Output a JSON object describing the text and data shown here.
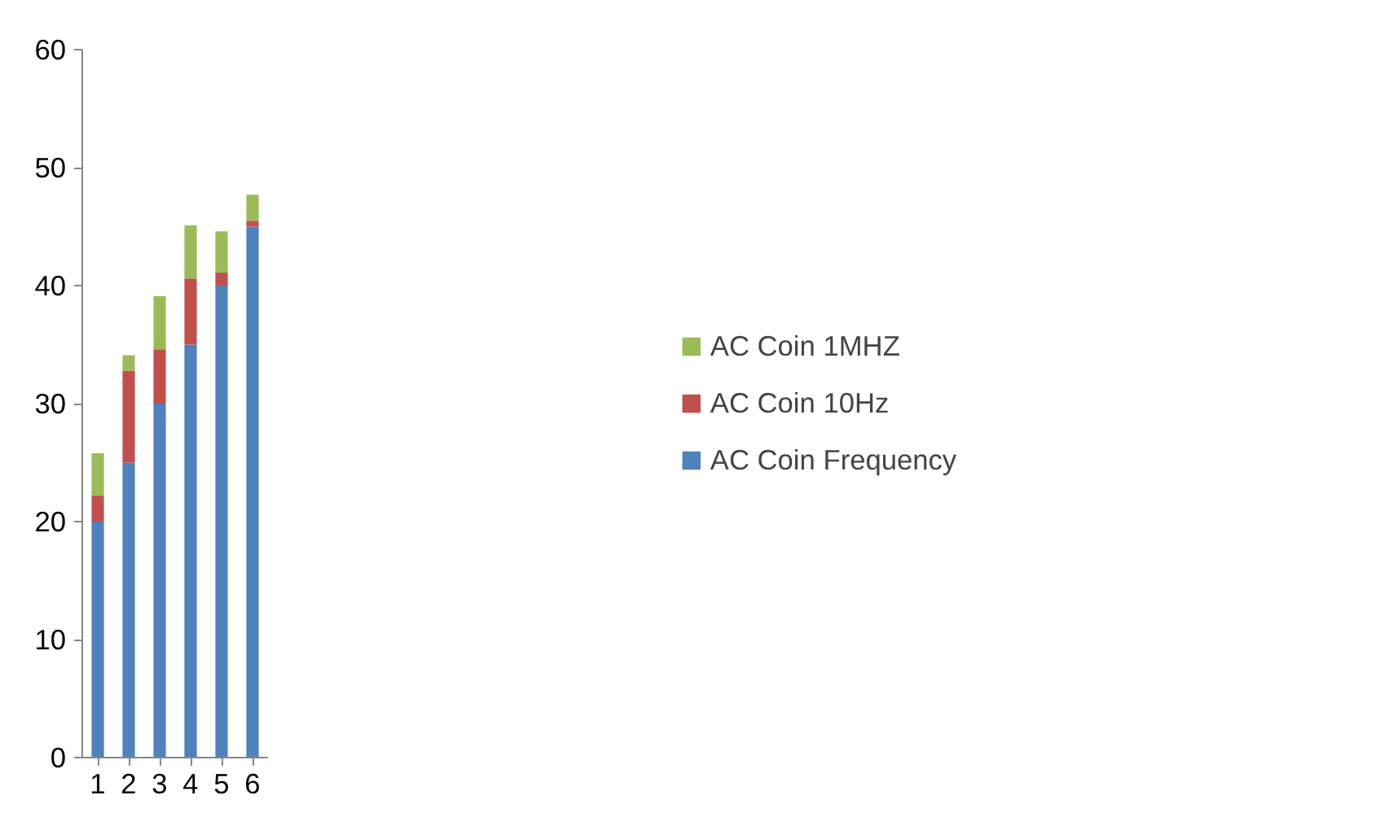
{
  "chart_data": {
    "type": "bar",
    "stacked": true,
    "categories": [
      "1",
      "2",
      "3",
      "4",
      "5",
      "6"
    ],
    "series": [
      {
        "name": "AC Coin Frequency",
        "color": "#4f81bd",
        "values": [
          20,
          25,
          30,
          35,
          40,
          45
        ]
      },
      {
        "name": "AC Coin 10Hz",
        "color": "#c0504d",
        "values": [
          2.2,
          7.8,
          4.6,
          5.6,
          1.1,
          0.5
        ]
      },
      {
        "name": "AC Coin 1MHZ",
        "color": "#9bbb59",
        "values": [
          3.6,
          1.3,
          4.5,
          4.5,
          3.5,
          2.2
        ]
      }
    ],
    "ylim": [
      0,
      60
    ],
    "yticks": [
      0,
      10,
      20,
      30,
      40,
      50,
      60
    ],
    "grid": false,
    "legend": "right"
  }
}
